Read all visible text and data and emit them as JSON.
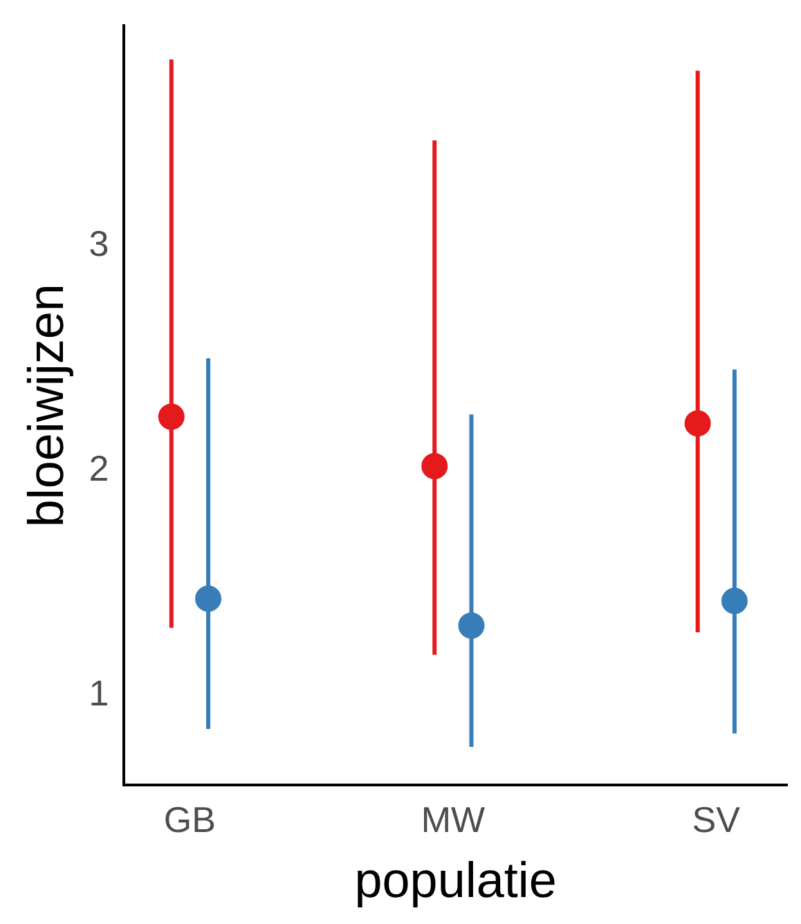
{
  "chart_data": {
    "type": "scatter",
    "xlabel": "populatie",
    "ylabel": "bloeiwijzen",
    "categories": [
      "GB",
      "MW",
      "SV"
    ],
    "ylim": [
      0.6,
      3.98
    ],
    "yticks": [
      1,
      2,
      3
    ],
    "grid": false,
    "legend": false,
    "marker": "circle",
    "series": [
      {
        "color": "#e41a1c",
        "values": [
          2.24,
          2.02,
          2.21
        ],
        "errors": [
          [
            1.3,
            3.83
          ],
          [
            1.18,
            3.47
          ],
          [
            1.28,
            3.78
          ]
        ]
      },
      {
        "color": "#377eb8",
        "values": [
          1.43,
          1.31,
          1.42
        ],
        "errors": [
          [
            0.85,
            2.5
          ],
          [
            0.77,
            2.25
          ],
          [
            0.83,
            2.45
          ]
        ]
      }
    ]
  }
}
